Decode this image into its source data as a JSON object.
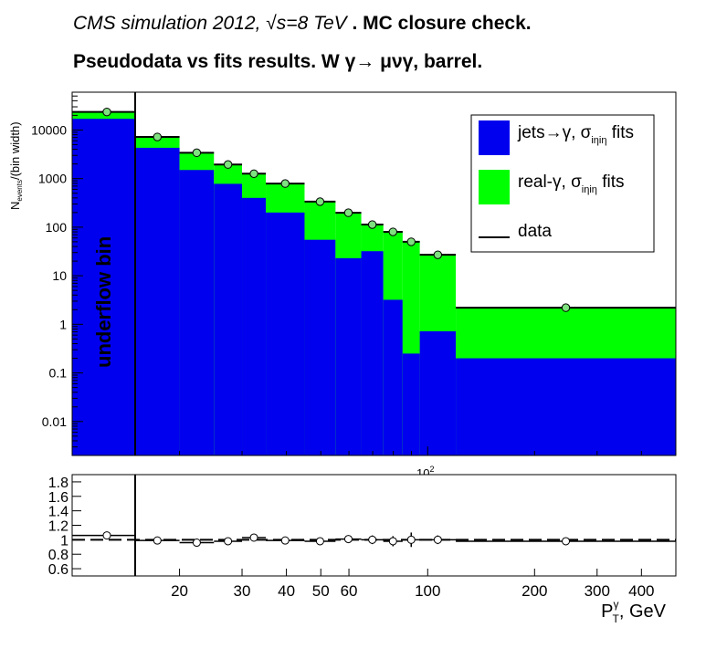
{
  "title": {
    "line1_italic": "CMS simulation 2012,",
    "line1_sqrt_s": "√s=8 TeV",
    "line1_bold": ". MC closure check.",
    "line2": "Pseudodata vs fits results.      W  γ→ μνγ, barrel."
  },
  "colors": {
    "jets": "#0000ee",
    "real": "#00ff00",
    "data_marker": "#7fe07f",
    "background": "#ffffff"
  },
  "chart_data": [
    {
      "type": "area",
      "title": "",
      "ylabel": "N_events/(bin width)",
      "ylabel_main": "N",
      "ylabel_sub": "events",
      "ylabel_tail": "/(bin width)",
      "yscale": "log",
      "xscale": "log",
      "ylim": [
        0.002,
        60000
      ],
      "yticks": [
        {
          "value": 0.01,
          "label": "0.01"
        },
        {
          "value": 0.1,
          "label": "0.1"
        },
        {
          "value": 1,
          "label": "1"
        },
        {
          "value": 10,
          "label": "10"
        },
        {
          "value": 100,
          "label": "100"
        },
        {
          "value": 1000,
          "label": "1000"
        },
        {
          "value": 10000,
          "label": "10000"
        }
      ],
      "x_exponent_label_base": "10",
      "x_exponent_label_power": "2",
      "underflow_label": "underflow bin",
      "legend": {
        "position": "top-right",
        "entries": [
          {
            "text": "jets→γ, σ",
            "sub": "iηiη",
            "tail": " fits",
            "kind": "jets"
          },
          {
            "text": "real-γ, σ",
            "sub": "iηiη",
            "tail": " fits",
            "kind": "real"
          },
          {
            "text": "data",
            "sub": "",
            "tail": "",
            "kind": "data"
          }
        ]
      },
      "bins": [
        {
          "low": "underflow",
          "high": 15,
          "jets": 17000,
          "total": 23000,
          "data": 23500
        },
        {
          "low": 15,
          "high": 20,
          "jets": 4300,
          "total": 7300,
          "data": 7200
        },
        {
          "low": 20,
          "high": 25,
          "jets": 1500,
          "total": 3500,
          "data": 3400
        },
        {
          "low": 25,
          "high": 30,
          "jets": 780,
          "total": 2000,
          "data": 1950
        },
        {
          "low": 30,
          "high": 35,
          "jets": 400,
          "total": 1280,
          "data": 1260
        },
        {
          "low": 35,
          "high": 45,
          "jets": 200,
          "total": 800,
          "data": 790
        },
        {
          "low": 45,
          "high": 55,
          "jets": 55,
          "total": 340,
          "data": 335
        },
        {
          "low": 55,
          "high": 65,
          "jets": 23,
          "total": 200,
          "data": 198
        },
        {
          "low": 65,
          "high": 75,
          "jets": 32,
          "total": 115,
          "data": 113
        },
        {
          "low": 75,
          "high": 85,
          "jets": 3.2,
          "total": 82,
          "data": 80
        },
        {
          "low": 85,
          "high": 95,
          "jets": 0.25,
          "total": 52,
          "data": 50
        },
        {
          "low": 95,
          "high": 120,
          "jets": 0.72,
          "total": 27,
          "data": 27
        },
        {
          "low": 120,
          "high": 500,
          "jets": 0.2,
          "total": 2.2,
          "data": 2.2
        }
      ]
    },
    {
      "type": "scatter",
      "title": "",
      "xlabel_main": "P",
      "xlabel_sup": "γ",
      "xlabel_sub": "T",
      "xlabel_tail": ", GeV",
      "ylim": [
        0.5,
        1.9
      ],
      "yticks": [
        {
          "value": 0.6,
          "label": "0.6"
        },
        {
          "value": 0.8,
          "label": "0.8"
        },
        {
          "value": 1,
          "label": "1"
        },
        {
          "value": 1.2,
          "label": "1.2"
        },
        {
          "value": 1.4,
          "label": "1.4"
        },
        {
          "value": 1.6,
          "label": "1.6"
        },
        {
          "value": 1.8,
          "label": "1.8"
        }
      ],
      "xticks": [
        {
          "value": 20,
          "label": "20"
        },
        {
          "value": 30,
          "label": "30"
        },
        {
          "value": 40,
          "label": "40"
        },
        {
          "value": 50,
          "label": "50"
        },
        {
          "value": 60,
          "label": "60"
        },
        {
          "value": 100,
          "label": "100"
        },
        {
          "value": 200,
          "label": "200"
        },
        {
          "value": 300,
          "label": "300"
        },
        {
          "value": 400,
          "label": "400"
        }
      ],
      "reference_value": 1,
      "points": [
        {
          "x": "underflow",
          "y": 1.06,
          "err": 0.01
        },
        {
          "x": 17.5,
          "y": 0.99,
          "err": 0.015
        },
        {
          "x": 22.5,
          "y": 0.96,
          "err": 0.02
        },
        {
          "x": 27.5,
          "y": 0.98,
          "err": 0.02
        },
        {
          "x": 32.5,
          "y": 1.03,
          "err": 0.03
        },
        {
          "x": 40,
          "y": 0.99,
          "err": 0.025
        },
        {
          "x": 50,
          "y": 0.98,
          "err": 0.03
        },
        {
          "x": 60,
          "y": 1.01,
          "err": 0.04
        },
        {
          "x": 70,
          "y": 1.0,
          "err": 0.06
        },
        {
          "x": 80,
          "y": 0.98,
          "err": 0.07
        },
        {
          "x": 90,
          "y": 1.0,
          "err": 0.1
        },
        {
          "x": 107.5,
          "y": 1.0,
          "err": 0.06
        },
        {
          "x": 310,
          "y": 0.98,
          "err": 0.04
        }
      ]
    }
  ]
}
